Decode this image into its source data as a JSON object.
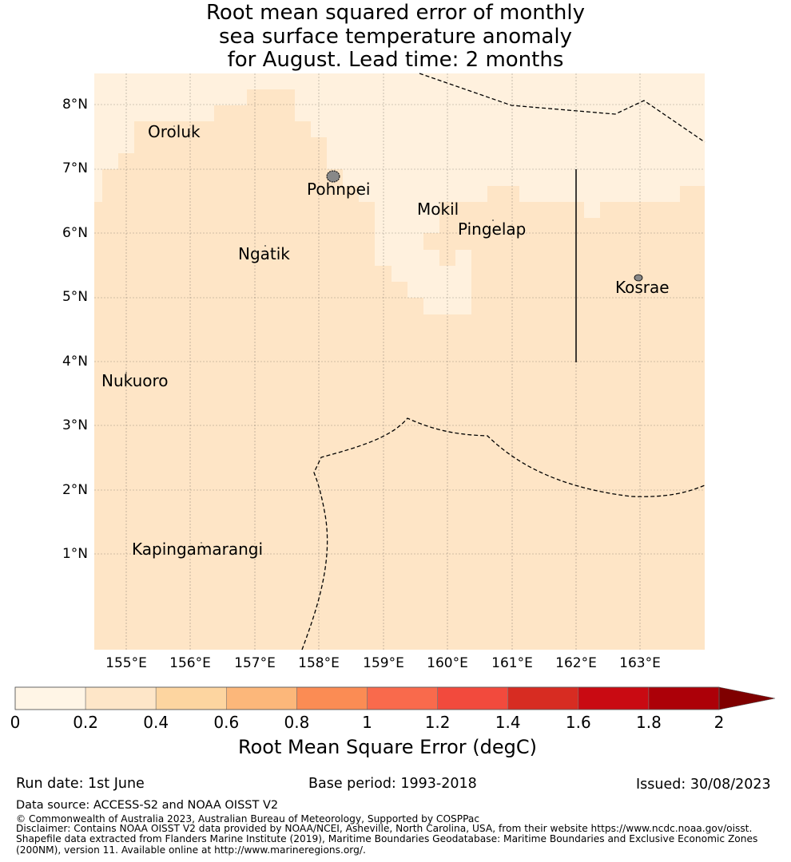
{
  "title": {
    "line1": "Root mean squared error of monthly",
    "line2": "sea surface temperature anomaly",
    "line3": "for August. Lead time: 2 months"
  },
  "map": {
    "lat_labels": [
      "8°N",
      "7°N",
      "6°N",
      "5°N",
      "4°N",
      "3°N",
      "2°N",
      "1°N"
    ],
    "lon_labels": [
      "155°E",
      "156°E",
      "157°E",
      "158°E",
      "159°E",
      "160°E",
      "161°E",
      "162°E",
      "163°E"
    ],
    "places": [
      "Oroluk",
      "Pohnpei",
      "Mokil",
      "Pingelap",
      "Ngatik",
      "Kosrae",
      "Nukuoro",
      "Kapingamarangi"
    ],
    "field_colors": {
      "low": "#fff1de",
      "mid": "#fee5c6"
    }
  },
  "colorbar": {
    "ticks": [
      "0",
      "0.2",
      "0.4",
      "0.6",
      "0.8",
      "1",
      "1.2",
      "1.4",
      "1.6",
      "1.8",
      "2"
    ],
    "colors": [
      "#fff5e6",
      "#fee6c8",
      "#fdd5a0",
      "#fcb77a",
      "#fb8c54",
      "#f96a4c",
      "#f24a3d",
      "#d72c22",
      "#c90a12",
      "#ac0008"
    ],
    "extend_color": "#7f0000",
    "label": "Root Mean Square Error (degC)"
  },
  "footer": {
    "run_date": "Run date: 1st June",
    "base_period": "Base period: 1993-2018",
    "issued": "Issued: 30/08/2023",
    "data_source": "Data source: ACCESS-S2 and NOAA OISST V2",
    "copyright": "© Commonwealth of Australia 2023, Australian Bureau of Meteorology, Supported by COSPPac",
    "disclaimer1": "Disclaimer: Contains NOAA OISST V2 data provided by NOAA/NCEI, Asheville, North Carolina, USA, from their website https://www.ncdc.noaa.gov/oisst.",
    "disclaimer2": "Shapefile data extracted from Flanders Marine Institute (2019), Maritime Boundaries Geodatabase: Maritime Boundaries and Exclusive Economic Zones",
    "disclaimer3": "(200NM), version 11. Available online at http://www.marineregions.org/."
  }
}
